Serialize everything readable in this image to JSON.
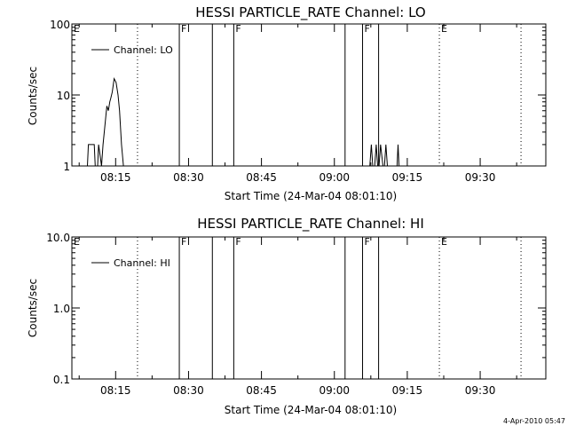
{
  "chart_data": [
    {
      "type": "line",
      "title": "HESSI PARTICLE_RATE Channel: LO",
      "xlabel": "Start Time (24-Mar-04 08:01:10)",
      "ylabel": "Counts/sec",
      "yscale": "log",
      "ylim": [
        1,
        100
      ],
      "ytick_labels": [
        "1",
        "10",
        "100"
      ],
      "ytick_values": [
        1,
        10,
        100
      ],
      "xlim_min": [
        6.0,
        103.5
      ],
      "xtick_labels": [
        "08:15",
        "08:30",
        "08:45",
        "09:00",
        "09:15",
        "09:30"
      ],
      "xtick_values_min": [
        15,
        30,
        45,
        60,
        75,
        90
      ],
      "grid": false,
      "legend_position": "top-left",
      "series": [
        {
          "name": "Channel: LO",
          "x": [
            9.2,
            9.4,
            10.6,
            10.8,
            11.3,
            11.5,
            12.1,
            12.4,
            13.2,
            13.5,
            13.8,
            14.0,
            14.3,
            14.7,
            15.1,
            15.5,
            15.8,
            16.2,
            16.6,
            17.0,
            17.3,
            17.6,
            67.3,
            67.6,
            67.9,
            68.3,
            68.6,
            68.9,
            69.2,
            69.5,
            70.0,
            70.3,
            70.6,
            70.9,
            71.2,
            72.9,
            73.1,
            73.3
          ],
          "y": [
            1,
            2,
            2,
            1,
            1,
            2,
            1,
            2,
            7,
            6,
            8,
            9,
            11,
            17,
            15,
            10,
            6,
            2,
            1,
            1,
            1,
            1,
            1,
            2,
            1,
            1,
            2,
            1,
            1,
            2,
            1,
            1,
            2,
            1,
            1,
            1,
            2,
            1
          ]
        }
      ],
      "markers": [
        {
          "label": "E",
          "x_min": 6.0,
          "style": "dotted"
        },
        {
          "label": "",
          "x_min": 19.5,
          "style": "dotted"
        },
        {
          "label": "F",
          "x_min": 28.1,
          "style": "solid"
        },
        {
          "label": "",
          "x_min": 34.9,
          "style": "solid"
        },
        {
          "label": "F",
          "x_min": 39.3,
          "style": "solid"
        },
        {
          "label": "",
          "x_min": 62.2,
          "style": "solid"
        },
        {
          "label": "F",
          "x_min": 65.8,
          "style": "solid"
        },
        {
          "label": "",
          "x_min": 69.1,
          "style": "solid"
        },
        {
          "label": "E",
          "x_min": 81.6,
          "style": "dotted"
        },
        {
          "label": "",
          "x_min": 98.4,
          "style": "dotted"
        }
      ]
    },
    {
      "type": "line",
      "title": "HESSI PARTICLE_RATE Channel: HI",
      "xlabel": "Start Time (24-Mar-04 08:01:10)",
      "ylabel": "Counts/sec",
      "yscale": "log",
      "ylim": [
        0.1,
        10
      ],
      "ytick_labels": [
        "0.1",
        "1.0",
        "10.0"
      ],
      "ytick_values": [
        0.1,
        1,
        10
      ],
      "xlim_min": [
        6.0,
        103.5
      ],
      "xtick_labels": [
        "08:15",
        "08:30",
        "08:45",
        "09:00",
        "09:15",
        "09:30"
      ],
      "xtick_values_min": [
        15,
        30,
        45,
        60,
        75,
        90
      ],
      "grid": false,
      "legend_position": "top-left",
      "series": [
        {
          "name": "Channel: HI",
          "x": [],
          "y": []
        }
      ],
      "markers": [
        {
          "label": "E",
          "x_min": 6.0,
          "style": "dotted"
        },
        {
          "label": "",
          "x_min": 19.5,
          "style": "dotted"
        },
        {
          "label": "F",
          "x_min": 28.1,
          "style": "solid"
        },
        {
          "label": "",
          "x_min": 34.9,
          "style": "solid"
        },
        {
          "label": "F",
          "x_min": 39.3,
          "style": "solid"
        },
        {
          "label": "",
          "x_min": 62.2,
          "style": "solid"
        },
        {
          "label": "F",
          "x_min": 65.8,
          "style": "solid"
        },
        {
          "label": "",
          "x_min": 69.1,
          "style": "solid"
        },
        {
          "label": "E",
          "x_min": 81.6,
          "style": "dotted"
        },
        {
          "label": "",
          "x_min": 98.4,
          "style": "dotted"
        }
      ]
    }
  ],
  "footer": {
    "timestamp": "4-Apr-2010 05:47"
  }
}
